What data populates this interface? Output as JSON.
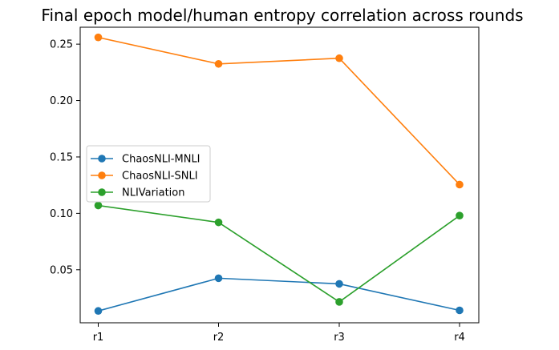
{
  "chart_data": {
    "type": "line",
    "title": "Final epoch model/human entropy correlation across rounds",
    "xlabel": "",
    "ylabel": "",
    "categories": [
      "r1",
      "r2",
      "r3",
      "r4"
    ],
    "ylim": [
      0.003,
      0.265
    ],
    "yticks": [
      0.05,
      0.1,
      0.15,
      0.2,
      0.25
    ],
    "ytick_labels": [
      "0.05",
      "0.10",
      "0.15",
      "0.20",
      "0.25"
    ],
    "grid": false,
    "legend": "center-left",
    "series": [
      {
        "name": "ChaosNLI-MNLI",
        "color": "#1f77b4",
        "values": [
          0.0135,
          0.0425,
          0.0375,
          0.014
        ]
      },
      {
        "name": "ChaosNLI-SNLI",
        "color": "#ff7f0e",
        "values": [
          0.256,
          0.2325,
          0.2375,
          0.1255
        ]
      },
      {
        "name": "NLIVariation",
        "color": "#2ca02c",
        "values": [
          0.107,
          0.092,
          0.0215,
          0.098
        ]
      }
    ]
  }
}
